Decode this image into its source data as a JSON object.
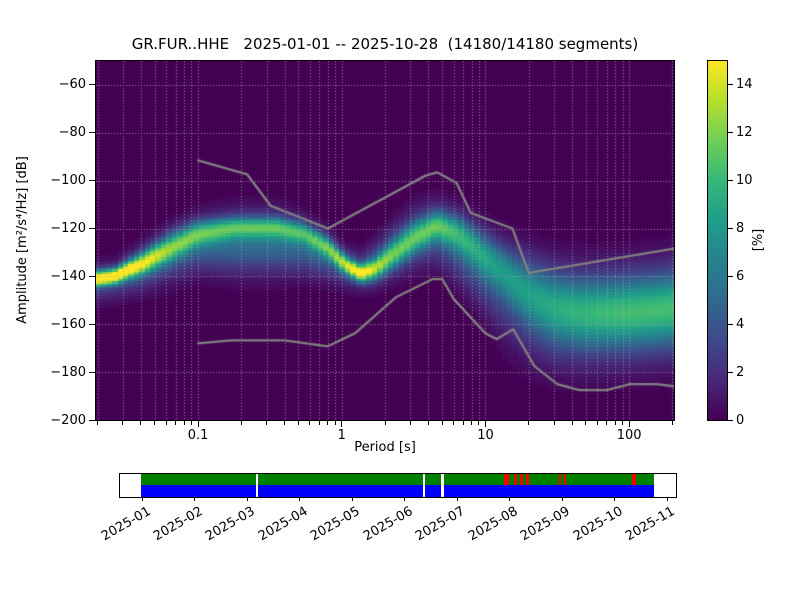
{
  "chart_data": {
    "type": "heatmap",
    "title": "GR.FUR..HHE   2025-01-01 -- 2025-10-28  (14180/14180 segments)",
    "xlabel": "Period [s]",
    "ylabel": "Amplitude [m²/s⁴/Hz] [dB]",
    "x_scale": "log",
    "xlim": [
      0.0195,
      205
    ],
    "ylim": [
      -200,
      -50
    ],
    "x_ticks": [
      0.1,
      1,
      10,
      100
    ],
    "x_tick_labels": [
      "0.1",
      "1",
      "10",
      "100"
    ],
    "y_ticks": [
      -200,
      -180,
      -160,
      -140,
      -120,
      -100,
      -80,
      -60
    ],
    "grid": {
      "style": "dotted",
      "color": "rgba(175,175,175,0.75)"
    },
    "background_color": "#440154",
    "period_bins_per_octave": 8,
    "colorbar": {
      "label": "[%]",
      "min": 0,
      "max": 15,
      "ticks": [
        0,
        2,
        4,
        6,
        8,
        10,
        12,
        14
      ],
      "colormap": "viridis",
      "stops": [
        "#440154",
        "#482878",
        "#3e4989",
        "#31688e",
        "#26828e",
        "#1f9e89",
        "#35b779",
        "#6ece58",
        "#b5de2b",
        "#fde725"
      ]
    },
    "density_ridge": [
      {
        "period": 0.0195,
        "components": [
          [
            -141,
            15.0,
            2.2
          ],
          [
            -143,
            3.0,
            5.0
          ]
        ]
      },
      {
        "period": 0.026,
        "components": [
          [
            -140,
            15.0,
            2.2
          ],
          [
            -142,
            3.0,
            5.0
          ]
        ]
      },
      {
        "period": 0.04,
        "components": [
          [
            -135,
            12.0,
            3.0
          ],
          [
            -137,
            4.0,
            6.0
          ]
        ]
      },
      {
        "period": 0.065,
        "components": [
          [
            -128,
            9.0,
            4.0
          ],
          [
            -131,
            4.0,
            7.0
          ]
        ]
      },
      {
        "period": 0.1,
        "components": [
          [
            -122,
            8.0,
            3.5
          ],
          [
            -127,
            5.0,
            7.0
          ]
        ]
      },
      {
        "period": 0.18,
        "components": [
          [
            -119.5,
            7.5,
            3.0
          ],
          [
            -126,
            5.5,
            8.0
          ]
        ]
      },
      {
        "period": 0.35,
        "components": [
          [
            -119.5,
            7.5,
            3.0
          ],
          [
            -126,
            5.5,
            8.0
          ]
        ]
      },
      {
        "period": 0.55,
        "components": [
          [
            -122,
            7.5,
            3.0
          ],
          [
            -128,
            5.0,
            7.0
          ]
        ]
      },
      {
        "period": 0.8,
        "components": [
          [
            -128,
            8.5,
            3.0
          ],
          [
            -132,
            4.5,
            6.0
          ]
        ]
      },
      {
        "period": 1.05,
        "components": [
          [
            -135,
            10.0,
            2.6
          ],
          [
            -136,
            4.0,
            5.0
          ]
        ]
      },
      {
        "period": 1.35,
        "components": [
          [
            -139,
            13.5,
            2.4
          ],
          [
            -138,
            3.5,
            5.0
          ]
        ]
      },
      {
        "period": 1.7,
        "components": [
          [
            -137,
            10.0,
            3.0
          ],
          [
            -135,
            4.0,
            6.0
          ]
        ]
      },
      {
        "period": 2.3,
        "components": [
          [
            -131,
            8.0,
            4.0
          ],
          [
            -129,
            4.0,
            7.0
          ]
        ]
      },
      {
        "period": 3.2,
        "components": [
          [
            -124,
            7.5,
            4.5
          ],
          [
            -124,
            4.0,
            8.0
          ]
        ]
      },
      {
        "period": 4.6,
        "components": [
          [
            -118.5,
            7.5,
            4.0
          ],
          [
            -122,
            4.5,
            8.0
          ]
        ]
      },
      {
        "period": 6.5,
        "components": [
          [
            -122,
            6.5,
            5.0
          ],
          [
            -128,
            4.5,
            9.0
          ]
        ]
      },
      {
        "period": 9.0,
        "components": [
          [
            -129,
            6.0,
            6.0
          ],
          [
            -136,
            4.0,
            10.0
          ]
        ]
      },
      {
        "period": 13.0,
        "components": [
          [
            -137,
            5.5,
            7.0
          ],
          [
            -146,
            3.5,
            12.0
          ]
        ]
      },
      {
        "period": 20.0,
        "components": [
          [
            -146,
            5.5,
            9.0
          ],
          [
            -154,
            3.5,
            13.0
          ]
        ]
      },
      {
        "period": 30.0,
        "components": [
          [
            -152,
            6.0,
            10.0
          ],
          [
            -158,
            3.5,
            13.0
          ]
        ]
      },
      {
        "period": 50.0,
        "components": [
          [
            -155,
            6.5,
            10.0
          ],
          [
            -158,
            3.5,
            13.0
          ]
        ]
      },
      {
        "period": 90.0,
        "components": [
          [
            -155,
            7.0,
            10.0
          ],
          [
            -157,
            3.5,
            13.0
          ]
        ]
      },
      {
        "period": 150.0,
        "components": [
          [
            -154,
            7.0,
            10.0
          ],
          [
            -156,
            3.5,
            13.0
          ]
        ]
      },
      {
        "period": 205.0,
        "components": [
          [
            -153,
            7.0,
            10.0
          ],
          [
            -155,
            3.5,
            13.0
          ]
        ]
      }
    ],
    "noise_models": {
      "color": "#808080",
      "high": [
        [
          0.1,
          -91.5
        ],
        [
          0.22,
          -97.4
        ],
        [
          0.32,
          -110.5
        ],
        [
          0.8,
          -120.0
        ],
        [
          3.8,
          -98.0
        ],
        [
          4.6,
          -96.5
        ],
        [
          6.3,
          -101.0
        ],
        [
          7.9,
          -113.5
        ],
        [
          15.4,
          -120.0
        ],
        [
          20.0,
          -138.5
        ],
        [
          205.0,
          -128.4
        ]
      ],
      "low": [
        [
          0.1,
          -168.0
        ],
        [
          0.17,
          -166.7
        ],
        [
          0.4,
          -166.7
        ],
        [
          0.8,
          -169.2
        ],
        [
          1.24,
          -163.7
        ],
        [
          2.4,
          -148.6
        ],
        [
          4.3,
          -141.1
        ],
        [
          5.0,
          -141.1
        ],
        [
          6.0,
          -149.4
        ],
        [
          10.0,
          -163.8
        ],
        [
          12.0,
          -166.2
        ],
        [
          15.6,
          -162.1
        ],
        [
          21.9,
          -177.5
        ],
        [
          31.6,
          -185.0
        ],
        [
          45.0,
          -187.5
        ],
        [
          70.0,
          -187.5
        ],
        [
          101.0,
          -185.0
        ],
        [
          154.0,
          -185.0
        ],
        [
          205.0,
          -185.9
        ]
      ]
    }
  },
  "timeline": {
    "months": [
      "2025-01",
      "2025-02",
      "2025-03",
      "2025-04",
      "2025-05",
      "2025-06",
      "2025-07",
      "2025-08",
      "2025-09",
      "2025-10",
      "2025-11"
    ],
    "coverage_color": "#008000",
    "availability_color": "#0000ff",
    "gap_color": "#ffffff",
    "flag_color": "#ff0000",
    "gaps_pct": [
      [
        22.4,
        0.5
      ],
      [
        54.9,
        0.5
      ],
      [
        58.5,
        0.5
      ]
    ],
    "flags_pct": [
      [
        70.8,
        1.0
      ],
      [
        72.7,
        0.5
      ],
      [
        73.9,
        0.5
      ],
      [
        75.1,
        0.6
      ],
      [
        81.4,
        0.5
      ],
      [
        82.4,
        0.5
      ],
      [
        95.8,
        0.6
      ]
    ]
  }
}
